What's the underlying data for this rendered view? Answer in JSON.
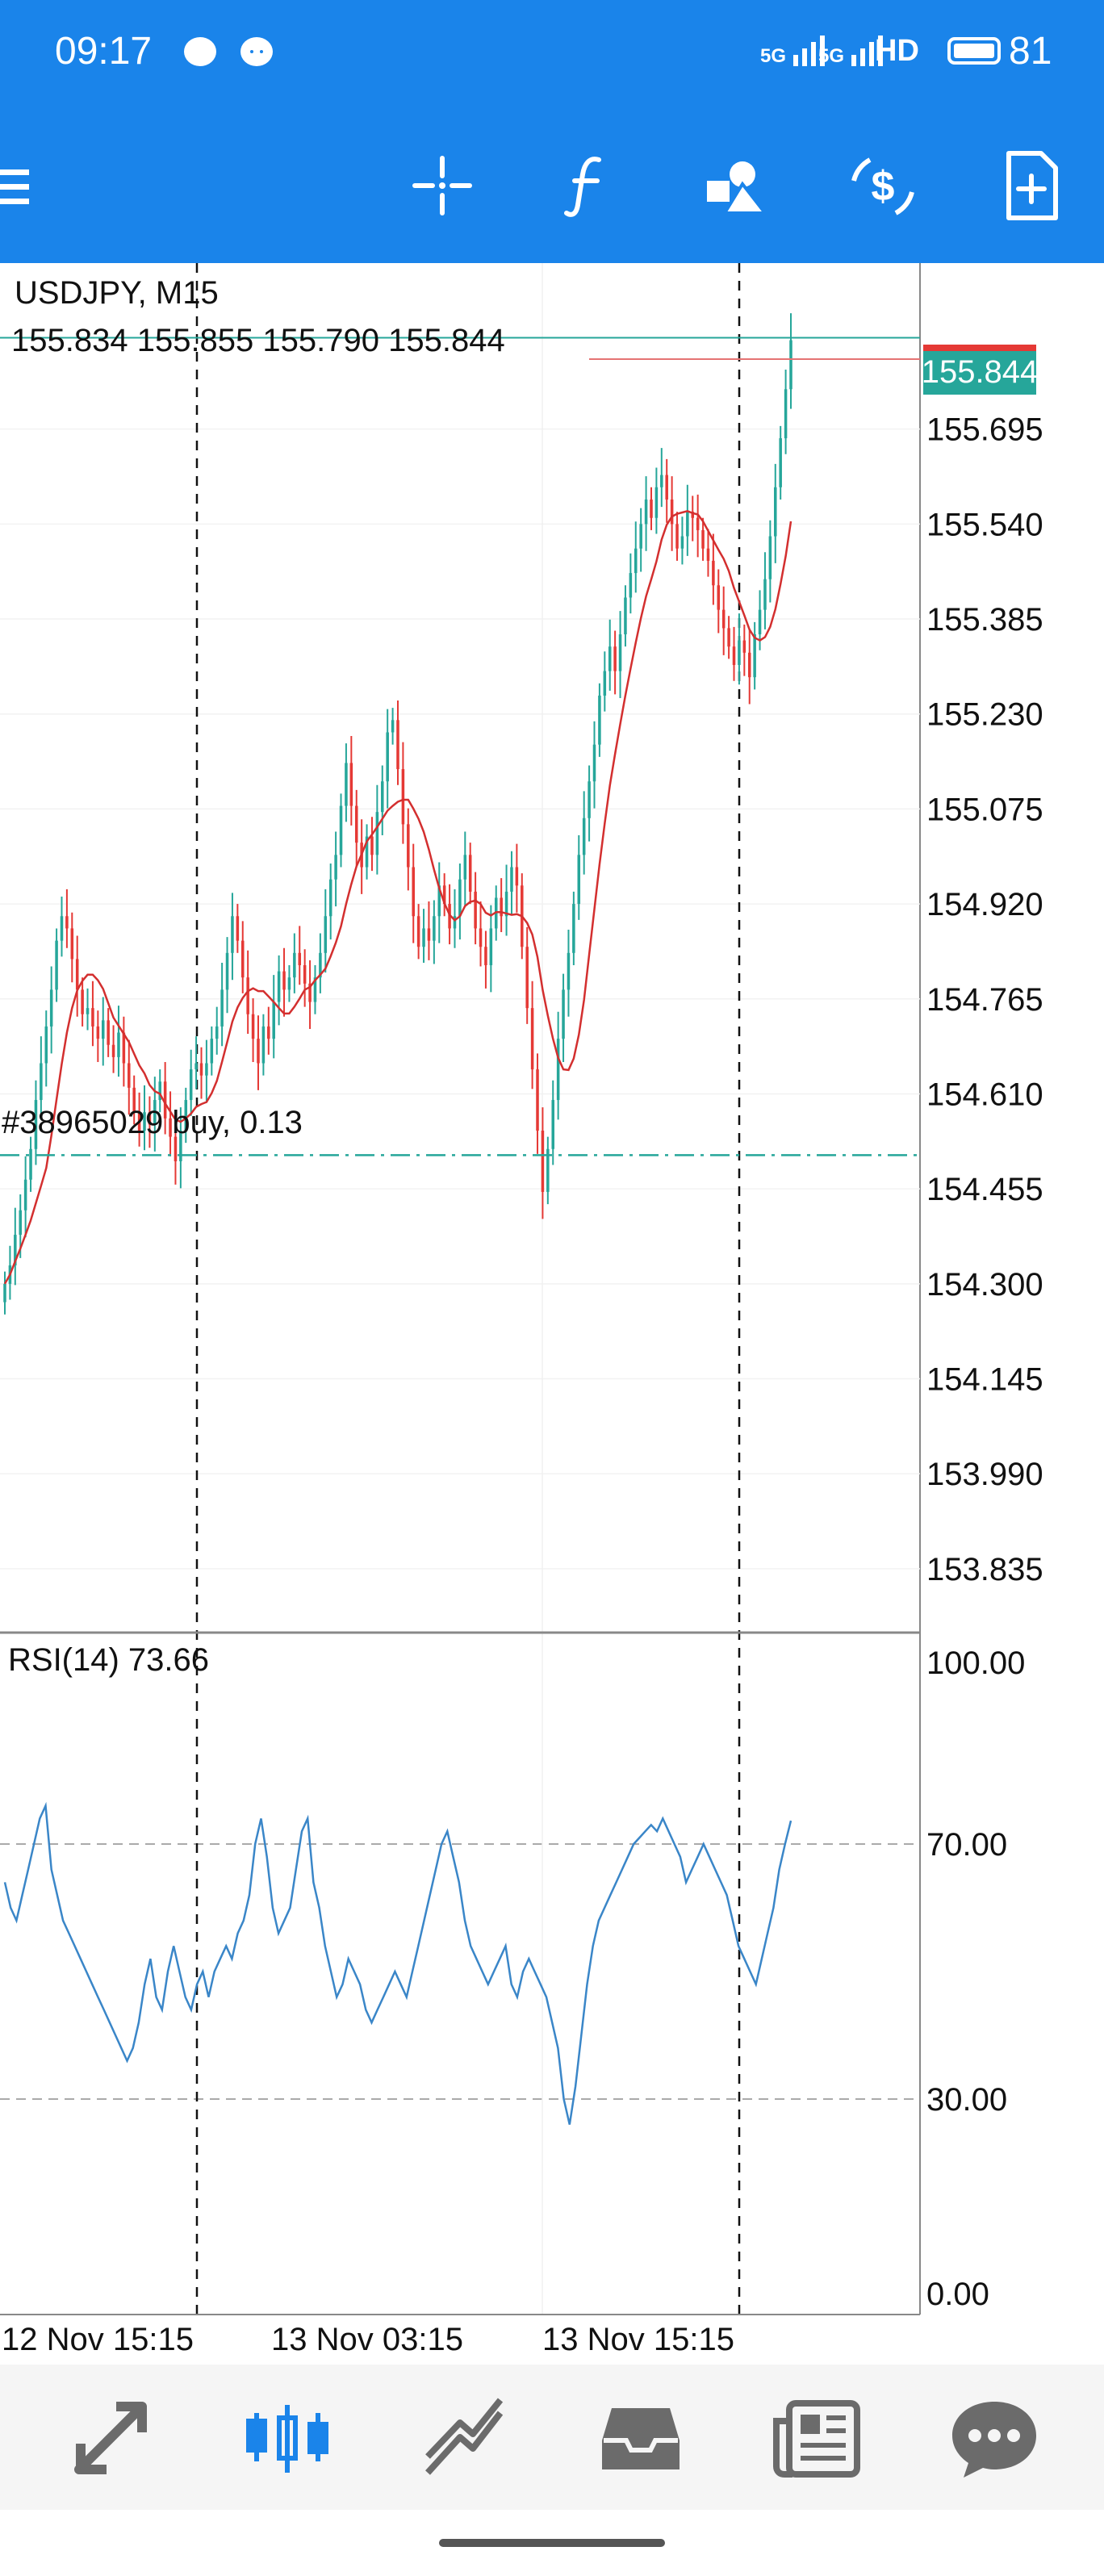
{
  "status_bar": {
    "time": "09:17",
    "network1": "5G",
    "network2": "5G",
    "hd": "HD",
    "battery": "81",
    "icons": [
      "chat-bubble-icon",
      "messenger-icon",
      "signal-icon",
      "signal-icon",
      "battery-icon"
    ]
  },
  "toolbar": {
    "icons": [
      "menu-icon",
      "crosshair-icon",
      "indicators-icon",
      "objects-icon",
      "trade-icon",
      "new-order-icon"
    ]
  },
  "chart": {
    "symbol": "USDJPY, M15",
    "ohlc": "155.834 155.855 155.790 155.844",
    "current_price": "155.844",
    "order_label": "#38965029 buy, 0.13",
    "indicator_label": "RSI(14) 73.66",
    "colors": {
      "bull": "#26a69a",
      "bear": "#e53935",
      "ma": "#d32f2f",
      "rsi": "#3a86c8",
      "order_line": "#26a69a",
      "current_price_bg": "#26a69a"
    }
  },
  "chart_data": {
    "type": "candlestick",
    "title": "USDJPY, M15",
    "price_axis_ticks": [
      "155.695",
      "155.540",
      "155.385",
      "155.230",
      "155.075",
      "154.920",
      "154.765",
      "154.610",
      "154.455",
      "154.300",
      "154.145",
      "153.990",
      "153.835"
    ],
    "x_labels": [
      "12 Nov 15:15",
      "13 Nov 03:15",
      "13 Nov 15:15"
    ],
    "ylim": [
      153.74,
      155.9
    ],
    "current_price": 155.844,
    "order_level": 154.51,
    "close": [
      154.3,
      154.33,
      154.38,
      154.42,
      154.47,
      154.52,
      154.6,
      154.66,
      154.72,
      154.78,
      154.86,
      154.9,
      154.88,
      154.83,
      154.78,
      154.74,
      154.75,
      154.72,
      154.7,
      154.73,
      154.69,
      154.67,
      154.71,
      154.66,
      154.62,
      154.58,
      154.55,
      154.58,
      154.56,
      154.6,
      154.63,
      154.57,
      154.54,
      154.5,
      154.55,
      154.6,
      154.65,
      154.66,
      154.64,
      154.66,
      154.7,
      154.72,
      154.78,
      154.84,
      154.9,
      154.86,
      154.8,
      154.74,
      154.7,
      154.66,
      154.72,
      154.7,
      154.76,
      154.81,
      154.78,
      154.8,
      154.84,
      154.82,
      154.79,
      154.76,
      154.8,
      154.84,
      154.9,
      154.96,
      155.0,
      155.08,
      155.15,
      155.08,
      155.02,
      154.98,
      155.03,
      155.0,
      155.07,
      155.12,
      155.2,
      155.22,
      155.14,
      155.05,
      154.98,
      154.9,
      154.85,
      154.88,
      154.86,
      154.9,
      154.95,
      154.92,
      154.88,
      154.9,
      154.96,
      155.0,
      154.94,
      154.88,
      154.85,
      154.82,
      154.88,
      154.93,
      154.9,
      154.94,
      154.98,
      154.95,
      154.85,
      154.75,
      154.65,
      154.55,
      154.45,
      154.52,
      154.6,
      154.7,
      154.78,
      154.84,
      154.92,
      155.0,
      155.06,
      155.12,
      155.18,
      155.26,
      155.3,
      155.34,
      155.3,
      155.36,
      155.42,
      155.46,
      155.5,
      155.54,
      155.58,
      155.55,
      155.6,
      155.62,
      155.58,
      155.54,
      155.5,
      155.52,
      155.56,
      155.55,
      155.53,
      155.5,
      155.48,
      155.44,
      155.4,
      155.37,
      155.34,
      155.31,
      155.35,
      155.33,
      155.29,
      155.36,
      155.4,
      155.45,
      155.52,
      155.6,
      155.68,
      155.76,
      155.84
    ],
    "rsi": [
      64,
      60,
      58,
      62,
      66,
      70,
      74,
      76,
      66,
      62,
      58,
      56,
      54,
      52,
      50,
      48,
      46,
      44,
      42,
      40,
      38,
      36,
      38,
      42,
      48,
      52,
      46,
      44,
      50,
      54,
      50,
      46,
      44,
      48,
      50,
      46,
      50,
      52,
      54,
      52,
      56,
      58,
      62,
      70,
      74,
      68,
      60,
      56,
      58,
      60,
      66,
      72,
      74,
      64,
      60,
      54,
      50,
      46,
      48,
      52,
      50,
      48,
      44,
      42,
      44,
      46,
      48,
      50,
      48,
      46,
      50,
      54,
      58,
      62,
      66,
      70,
      72,
      68,
      64,
      58,
      54,
      52,
      50,
      48,
      50,
      52,
      54,
      48,
      46,
      50,
      52,
      50,
      48,
      46,
      42,
      38,
      30,
      26,
      32,
      40,
      48,
      54,
      58,
      60,
      62,
      64,
      66,
      68,
      70,
      71,
      72,
      73,
      72,
      74,
      72,
      70,
      68,
      64,
      66,
      68,
      70,
      68,
      66,
      64,
      62,
      58,
      54,
      52,
      50,
      48,
      52,
      56,
      60,
      66,
      70,
      73.66
    ],
    "rsi_levels": [
      70,
      30
    ],
    "rsi_axis_ticks": [
      "100.00",
      "70.00",
      "30.00",
      "0.00"
    ],
    "rsi_ylim": [
      0,
      100
    ]
  },
  "bottom_nav": {
    "items": [
      {
        "name": "quotes-icon"
      },
      {
        "name": "chart-icon"
      },
      {
        "name": "trade-icon"
      },
      {
        "name": "history-icon"
      },
      {
        "name": "news-icon"
      },
      {
        "name": "messages-icon"
      }
    ],
    "active_index": 1
  }
}
